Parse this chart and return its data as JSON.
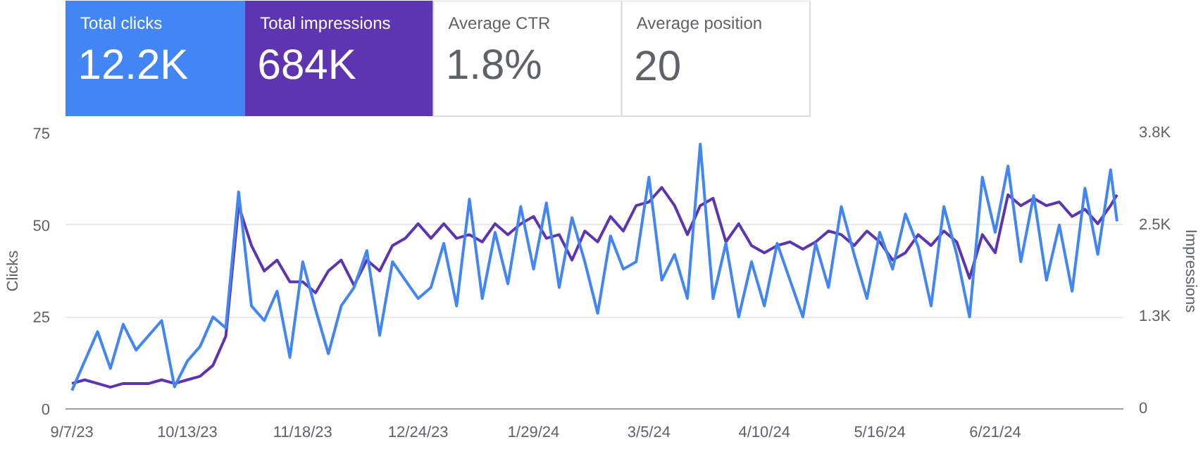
{
  "chart_data": [
    {
      "type": "other",
      "annotations": [
        "Total clicks",
        "12.2K",
        "Total impressions",
        "684K",
        "Average CTR",
        "1.8%",
        "Average position",
        "20"
      ],
      "colors": [
        "#4285f4",
        "#5e35b1",
        "#ffffff",
        "#ffffff"
      ]
    },
    {
      "type": "line",
      "ylabel": "Clicks",
      "y2label": "Impressions",
      "x": [
        "2023-09-07",
        "2023-09-11",
        "2023-09-15",
        "2023-09-19",
        "2023-09-23",
        "2023-09-27",
        "2023-10-01",
        "2023-10-05",
        "2023-10-09",
        "2023-10-13",
        "2023-10-17",
        "2023-10-21",
        "2023-10-25",
        "2023-10-29",
        "2023-11-02",
        "2023-11-06",
        "2023-11-10",
        "2023-11-14",
        "2023-11-18",
        "2023-11-22",
        "2023-11-26",
        "2023-11-30",
        "2023-12-04",
        "2023-12-08",
        "2023-12-12",
        "2023-12-16",
        "2023-12-20",
        "2023-12-24",
        "2023-12-28",
        "2024-01-01",
        "2024-01-05",
        "2024-01-09",
        "2024-01-13",
        "2024-01-17",
        "2024-01-21",
        "2024-01-25",
        "2024-01-29",
        "2024-02-02",
        "2024-02-06",
        "2024-02-10",
        "2024-02-14",
        "2024-02-18",
        "2024-02-22",
        "2024-02-26",
        "2024-03-01",
        "2024-03-05",
        "2024-03-09",
        "2024-03-13",
        "2024-03-17",
        "2024-03-21",
        "2024-03-25",
        "2024-03-29",
        "2024-04-02",
        "2024-04-06",
        "2024-04-10",
        "2024-04-14",
        "2024-04-18",
        "2024-04-22",
        "2024-04-26",
        "2024-04-30",
        "2024-05-04",
        "2024-05-08",
        "2024-05-12",
        "2024-05-16",
        "2024-05-20",
        "2024-05-24",
        "2024-05-28",
        "2024-06-01",
        "2024-06-05",
        "2024-06-09",
        "2024-06-13",
        "2024-06-17",
        "2024-06-21",
        "2024-06-25",
        "2024-06-29",
        "2024-07-03",
        "2024-07-07",
        "2024-07-11",
        "2024-07-15",
        "2024-07-19",
        "2024-07-23",
        "2024-07-27",
        "2024-07-29"
      ],
      "series": [
        {
          "color": "#5e35b1",
          "axis": "y2",
          "values": [
            350,
            400,
            350,
            300,
            350,
            350,
            350,
            400,
            350,
            400,
            450,
            600,
            1000,
            2800,
            2250,
            1900,
            2050,
            1750,
            1750,
            1600,
            1900,
            2050,
            1700,
            2050,
            1900,
            2250,
            2350,
            2550,
            2350,
            2550,
            2350,
            2400,
            2300,
            2550,
            2400,
            2550,
            2650,
            2350,
            2400,
            2050,
            2450,
            2300,
            2650,
            2450,
            2800,
            2850,
            3050,
            2800,
            2400,
            2800,
            2900,
            2300,
            2550,
            2250,
            2150,
            2250,
            2300,
            2200,
            2300,
            2450,
            2400,
            2250,
            2450,
            2300,
            2050,
            2150,
            2400,
            2250,
            2450,
            2300,
            1800,
            2400,
            2150,
            2950,
            2800,
            2900,
            2800,
            2850,
            2650,
            2750,
            2550,
            2800,
            2950
          ]
        },
        {
          "color": "#4285f4",
          "values": [
            5,
            13,
            21,
            11,
            23,
            16,
            20,
            24,
            6,
            13,
            17,
            25,
            22,
            59,
            28,
            24,
            32,
            14,
            40,
            27,
            15,
            28,
            33,
            43,
            20,
            40,
            35,
            30,
            33,
            45,
            28,
            57,
            30,
            48,
            34,
            55,
            38,
            56,
            33,
            52,
            40,
            26,
            47,
            38,
            40,
            63,
            35,
            42,
            30,
            72,
            30,
            45,
            25,
            40,
            28,
            45,
            35,
            25,
            45,
            33,
            55,
            42,
            30,
            48,
            38,
            53,
            44,
            28,
            55,
            42,
            25,
            63,
            48,
            66,
            40,
            58,
            35,
            50,
            32,
            60,
            42,
            65,
            51
          ]
        }
      ],
      "xlim": [
        "2023-09-05",
        "2024-07-31"
      ],
      "xticks": [
        {
          "value": "2023-09-07",
          "label": "9/7/23"
        },
        {
          "value": "2023-10-13",
          "label": "10/13/23"
        },
        {
          "value": "2023-11-18",
          "label": "11/18/23"
        },
        {
          "value": "2023-12-24",
          "label": "12/24/23"
        },
        {
          "value": "2024-01-29",
          "label": "1/29/24"
        },
        {
          "value": "2024-03-05",
          "label": "3/5/24"
        },
        {
          "value": "2024-04-10",
          "label": "4/10/24"
        },
        {
          "value": "2024-05-16",
          "label": "5/16/24"
        },
        {
          "value": "2024-06-21",
          "label": "6/21/24"
        }
      ],
      "ylim": [
        0,
        75
      ],
      "yticks": [
        0,
        25,
        50,
        75
      ],
      "y2lim": [
        0,
        3800
      ],
      "y2ticks": [
        0,
        {
          "value": 1267,
          "label": "1.3K"
        },
        {
          "value": 2533,
          "label": "2.5K"
        },
        {
          "value": 3800,
          "label": "3.8K"
        }
      ],
      "grid": "y",
      "marker": "none",
      "line_style": "solid"
    }
  ]
}
